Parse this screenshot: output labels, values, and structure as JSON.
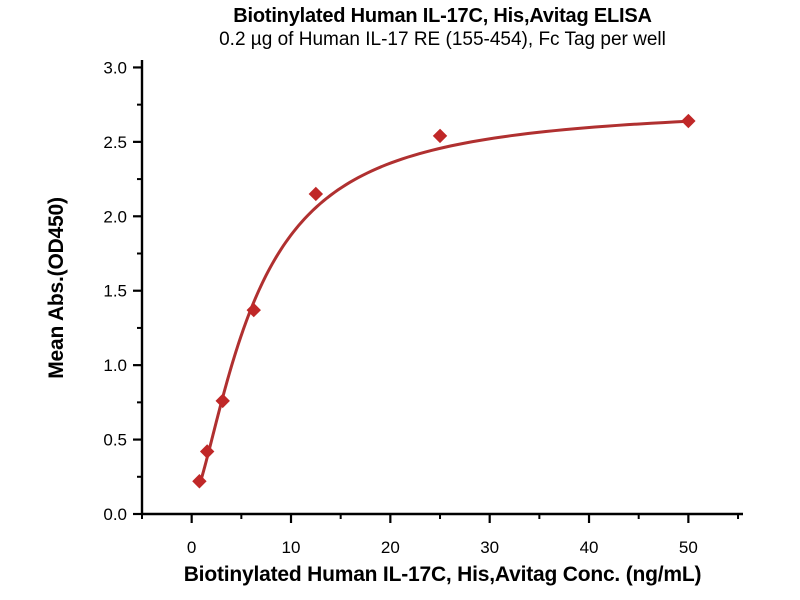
{
  "page": {
    "background_color": "#ffffff",
    "text_color": "#000000"
  },
  "chart_data": {
    "type": "scatter",
    "title": "Biotinylated Human IL-17C, His,Avitag ELISA",
    "subtitle": "0.2 µg of Human IL-17 RE (155-454), Fc Tag per well",
    "xlabel": "Biotinylated Human IL-17C, His,Avitag Conc. (ng/mL)",
    "ylabel": "Mean Abs.(OD450)",
    "x": [
      0.78,
      1.56,
      3.125,
      6.25,
      12.5,
      25,
      50
    ],
    "y": [
      0.22,
      0.42,
      0.76,
      1.37,
      2.15,
      2.54,
      2.64
    ],
    "xlim": [
      -5,
      55.5
    ],
    "ylim": [
      0,
      3.05
    ],
    "xticks_major": [
      0,
      10,
      20,
      30,
      40,
      50
    ],
    "xtick_labels": [
      "0",
      "10",
      "20",
      "30",
      "40",
      "50"
    ],
    "xticks_minor": [
      5,
      15,
      25,
      35,
      45,
      55
    ],
    "yticks_major": [
      0,
      0.5,
      1.0,
      1.5,
      2.0,
      2.5,
      3.0
    ],
    "ytick_labels": [
      "0.0",
      "0.5",
      "1.0",
      "1.5",
      "2.0",
      "2.5",
      "3.0"
    ],
    "yticks_minor": [
      0.25,
      0.75,
      1.25,
      1.75,
      2.25,
      2.75
    ],
    "grid": false,
    "legend": "none",
    "marker": "diamond",
    "fit_curve": {
      "model": "4PL",
      "A": 0.08,
      "D": 2.75,
      "C": 6.2,
      "B": 1.5,
      "x_start": 0.78,
      "x_end": 50
    },
    "colors": {
      "line": "#b03030",
      "marker": "#c02828",
      "axis": "#000000"
    }
  }
}
